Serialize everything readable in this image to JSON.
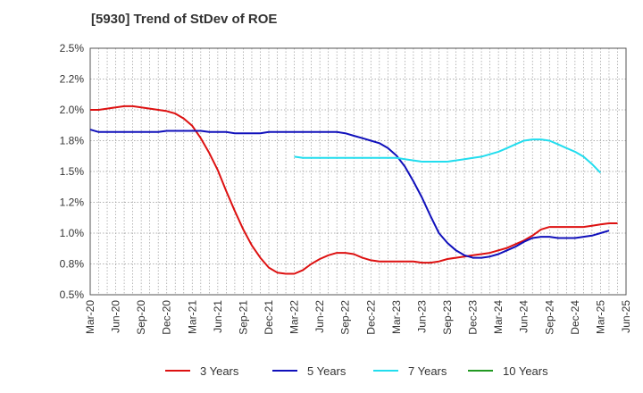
{
  "chart_data": {
    "type": "line",
    "title": "[5930]  Trend of StDev of ROE",
    "xlabel": "",
    "ylabel": "",
    "ylim": [
      0.5,
      2.5
    ],
    "y_ticks": [
      "0.5%",
      "0.8%",
      "1.0%",
      "1.2%",
      "1.5%",
      "1.8%",
      "2.0%",
      "2.2%",
      "2.5%"
    ],
    "x_ticks": [
      "Mar-20",
      "Jun-20",
      "Sep-20",
      "Dec-20",
      "Mar-21",
      "Jun-21",
      "Sep-21",
      "Dec-21",
      "Mar-22",
      "Jun-22",
      "Sep-22",
      "Dec-22",
      "Mar-23",
      "Jun-23",
      "Sep-23",
      "Dec-23",
      "Mar-24",
      "Jun-24",
      "Sep-24",
      "Dec-24",
      "Mar-25",
      "Jun-25"
    ],
    "grid": true,
    "legend_position": "bottom",
    "series": [
      {
        "name": "3 Years",
        "color": "#dd1111",
        "points": [
          [
            0,
            2.0
          ],
          [
            1,
            2.0
          ],
          [
            2,
            2.01
          ],
          [
            3,
            2.02
          ],
          [
            4,
            2.03
          ],
          [
            5,
            2.03
          ],
          [
            6,
            2.02
          ],
          [
            7,
            2.01
          ],
          [
            8,
            2.0
          ],
          [
            9,
            1.99
          ],
          [
            10,
            1.97
          ],
          [
            11,
            1.93
          ],
          [
            12,
            1.87
          ],
          [
            13,
            1.77
          ],
          [
            14,
            1.65
          ],
          [
            15,
            1.51
          ],
          [
            16,
            1.34
          ],
          [
            17,
            1.18
          ],
          [
            18,
            1.03
          ],
          [
            19,
            0.9
          ],
          [
            20,
            0.8
          ],
          [
            21,
            0.72
          ],
          [
            22,
            0.68
          ],
          [
            23,
            0.67
          ],
          [
            24,
            0.67
          ],
          [
            25,
            0.7
          ],
          [
            26,
            0.75
          ],
          [
            27,
            0.79
          ],
          [
            28,
            0.82
          ],
          [
            29,
            0.84
          ],
          [
            30,
            0.84
          ],
          [
            31,
            0.83
          ],
          [
            32,
            0.8
          ],
          [
            33,
            0.78
          ],
          [
            34,
            0.77
          ],
          [
            35,
            0.77
          ],
          [
            36,
            0.77
          ],
          [
            37,
            0.77
          ],
          [
            38,
            0.77
          ],
          [
            39,
            0.76
          ],
          [
            40,
            0.76
          ],
          [
            41,
            0.77
          ],
          [
            42,
            0.79
          ],
          [
            43,
            0.8
          ],
          [
            44,
            0.81
          ],
          [
            45,
            0.82
          ],
          [
            46,
            0.83
          ],
          [
            47,
            0.84
          ],
          [
            48,
            0.86
          ],
          [
            49,
            0.88
          ],
          [
            50,
            0.91
          ],
          [
            51,
            0.94
          ],
          [
            52,
            0.98
          ],
          [
            53,
            1.03
          ],
          [
            54,
            1.05
          ],
          [
            55,
            1.05
          ],
          [
            56,
            1.05
          ],
          [
            57,
            1.05
          ],
          [
            58,
            1.05
          ],
          [
            59,
            1.06
          ],
          [
            60,
            1.07
          ],
          [
            61,
            1.08
          ],
          [
            62,
            1.08
          ]
        ]
      },
      {
        "name": "5 Years",
        "color": "#1010bb",
        "points": [
          [
            0,
            1.84
          ],
          [
            1,
            1.82
          ],
          [
            2,
            1.82
          ],
          [
            3,
            1.82
          ],
          [
            4,
            1.82
          ],
          [
            5,
            1.82
          ],
          [
            6,
            1.82
          ],
          [
            7,
            1.82
          ],
          [
            8,
            1.82
          ],
          [
            9,
            1.83
          ],
          [
            10,
            1.83
          ],
          [
            11,
            1.83
          ],
          [
            12,
            1.83
          ],
          [
            13,
            1.83
          ],
          [
            14,
            1.82
          ],
          [
            15,
            1.82
          ],
          [
            16,
            1.82
          ],
          [
            17,
            1.81
          ],
          [
            18,
            1.81
          ],
          [
            19,
            1.81
          ],
          [
            20,
            1.81
          ],
          [
            21,
            1.82
          ],
          [
            22,
            1.82
          ],
          [
            23,
            1.82
          ],
          [
            24,
            1.82
          ],
          [
            25,
            1.82
          ],
          [
            26,
            1.82
          ],
          [
            27,
            1.82
          ],
          [
            28,
            1.82
          ],
          [
            29,
            1.82
          ],
          [
            30,
            1.81
          ],
          [
            31,
            1.79
          ],
          [
            32,
            1.77
          ],
          [
            33,
            1.75
          ],
          [
            34,
            1.73
          ],
          [
            35,
            1.69
          ],
          [
            36,
            1.63
          ],
          [
            37,
            1.54
          ],
          [
            38,
            1.42
          ],
          [
            39,
            1.29
          ],
          [
            40,
            1.14
          ],
          [
            41,
            1.0
          ],
          [
            42,
            0.92
          ],
          [
            43,
            0.86
          ],
          [
            44,
            0.82
          ],
          [
            45,
            0.8
          ],
          [
            46,
            0.8
          ],
          [
            47,
            0.81
          ],
          [
            48,
            0.83
          ],
          [
            49,
            0.86
          ],
          [
            50,
            0.89
          ],
          [
            51,
            0.93
          ],
          [
            52,
            0.96
          ],
          [
            53,
            0.97
          ],
          [
            54,
            0.97
          ],
          [
            55,
            0.96
          ],
          [
            56,
            0.96
          ],
          [
            57,
            0.96
          ],
          [
            58,
            0.97
          ],
          [
            59,
            0.98
          ],
          [
            60,
            1.0
          ],
          [
            61,
            1.02
          ]
        ]
      },
      {
        "name": "7 Years",
        "color": "#22ddee",
        "points": [
          [
            24,
            1.62
          ],
          [
            25,
            1.61
          ],
          [
            26,
            1.61
          ],
          [
            27,
            1.61
          ],
          [
            28,
            1.61
          ],
          [
            29,
            1.61
          ],
          [
            30,
            1.61
          ],
          [
            31,
            1.61
          ],
          [
            32,
            1.61
          ],
          [
            33,
            1.61
          ],
          [
            34,
            1.61
          ],
          [
            35,
            1.61
          ],
          [
            36,
            1.61
          ],
          [
            37,
            1.6
          ],
          [
            38,
            1.59
          ],
          [
            39,
            1.58
          ],
          [
            40,
            1.58
          ],
          [
            41,
            1.58
          ],
          [
            42,
            1.58
          ],
          [
            43,
            1.59
          ],
          [
            44,
            1.6
          ],
          [
            45,
            1.61
          ],
          [
            46,
            1.62
          ],
          [
            47,
            1.64
          ],
          [
            48,
            1.66
          ],
          [
            49,
            1.69
          ],
          [
            50,
            1.72
          ],
          [
            51,
            1.75
          ],
          [
            52,
            1.76
          ],
          [
            53,
            1.76
          ],
          [
            54,
            1.75
          ],
          [
            55,
            1.72
          ],
          [
            56,
            1.69
          ],
          [
            57,
            1.66
          ],
          [
            58,
            1.62
          ],
          [
            59,
            1.56
          ],
          [
            60,
            1.49
          ]
        ]
      },
      {
        "name": "10 Years",
        "color": "#229922",
        "points": []
      }
    ]
  }
}
